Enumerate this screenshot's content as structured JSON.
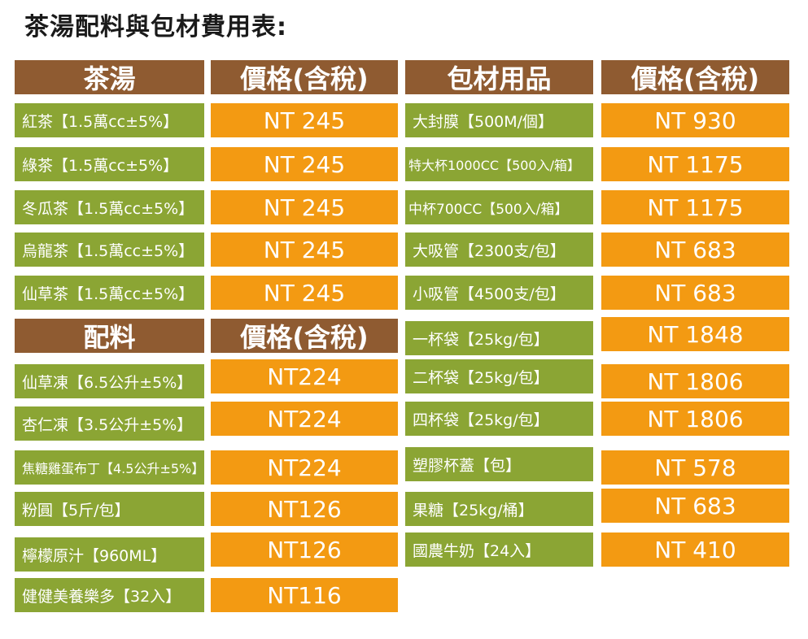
{
  "title": "茶湯配料與包材費用表:",
  "tea": {
    "header": "茶湯",
    "price_header": "價格(含稅)",
    "items": [
      {
        "name": "紅茶【1.5萬cc±5%】",
        "price": "NT 245"
      },
      {
        "name": "綠茶【1.5萬cc±5%】",
        "price": "NT 245"
      },
      {
        "name": "冬瓜茶【1.5萬cc±5%】",
        "price": "NT 245"
      },
      {
        "name": "烏龍茶【1.5萬cc±5%】",
        "price": "NT 245"
      },
      {
        "name": "仙草茶【1.5萬cc±5%】",
        "price": "NT 245"
      }
    ]
  },
  "toppings": {
    "header": "配料",
    "price_header": "價格(含稅)",
    "items": [
      {
        "name": "仙草凍【6.5公升±5%】",
        "price": "NT224"
      },
      {
        "name": "杏仁凍【3.5公升±5%】",
        "price": "NT224"
      },
      {
        "name": "焦糖雞蛋布丁【4.5公升±5%】",
        "price": "NT224"
      },
      {
        "name": "粉圓【5斤/包】",
        "price": "NT126"
      },
      {
        "name": "檸檬原汁【960ML】",
        "price": "NT126"
      },
      {
        "name": "健健美養樂多【32入】",
        "price": "NT116"
      }
    ]
  },
  "packaging": {
    "header": "包材用品",
    "price_header": "價格(含稅)",
    "items": [
      {
        "name": "大封膜【500M/個】",
        "price": "NT 930"
      },
      {
        "name": "特大杯1000CC【500入/箱】",
        "price": "NT 1175"
      },
      {
        "name": "中杯700CC【500入/箱】",
        "price": "NT 1175"
      },
      {
        "name": "大吸管【2300支/包】",
        "price": "NT 683"
      },
      {
        "name": "小吸管【4500支/包】",
        "price": "NT 683"
      },
      {
        "name": "一杯袋【25kg/包】",
        "price": "NT 1848"
      },
      {
        "name": "二杯袋【25kg/包】",
        "price": "NT 1806"
      },
      {
        "name": "四杯袋【25kg/包】",
        "price": "NT 1806"
      },
      {
        "name": "塑膠杯蓋【包】",
        "price": "NT 578"
      },
      {
        "name": "果糖【25kg/桶】",
        "price": "NT 683"
      },
      {
        "name": "國農牛奶【24入】",
        "price": "NT 410"
      }
    ]
  },
  "colors": {
    "header": "#8f5b31",
    "item": "#8ba534",
    "price": "#f39a12"
  }
}
